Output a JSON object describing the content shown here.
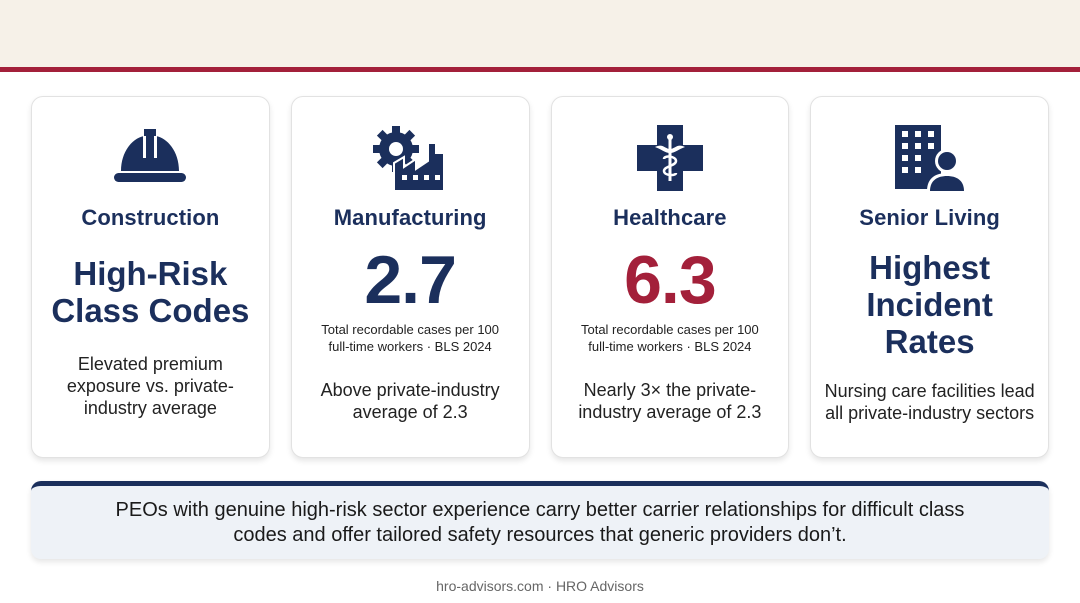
{
  "colors": {
    "navy": "#1b2f5c",
    "accent_red": "#a3203a",
    "top_band": "#f6f1e8",
    "callout_bg": "#eef2f7"
  },
  "cards": [
    {
      "icon": "hard-hat-icon",
      "title": "Construction",
      "headline": "High-Risk Class Codes",
      "description": "Elevated premium exposure vs. private-industry average"
    },
    {
      "icon": "gear-factory-icon",
      "title": "Manufacturing",
      "value": "2.7",
      "source": "Total recordable cases per 100 full-time workers · BLS 2024",
      "description": "Above private-industry average of 2.3"
    },
    {
      "icon": "medical-caduceus-icon",
      "title": "Healthcare",
      "value": "6.3",
      "source": "Total recordable cases per 100 full-time workers · BLS 2024",
      "description": "Nearly 3× the private-industry average of 2.3"
    },
    {
      "icon": "building-person-icon",
      "title": "Senior Living",
      "headline": "Highest Incident Rates",
      "description": "Nursing care facilities lead all private-industry sectors"
    }
  ],
  "callout": {
    "text": "PEOs with genuine high-risk sector experience carry better carrier relationships for difficult class codes and offer tailored safety resources that generic providers don’t."
  },
  "footer": {
    "text": "hro-advisors.com · HRO Advisors"
  }
}
